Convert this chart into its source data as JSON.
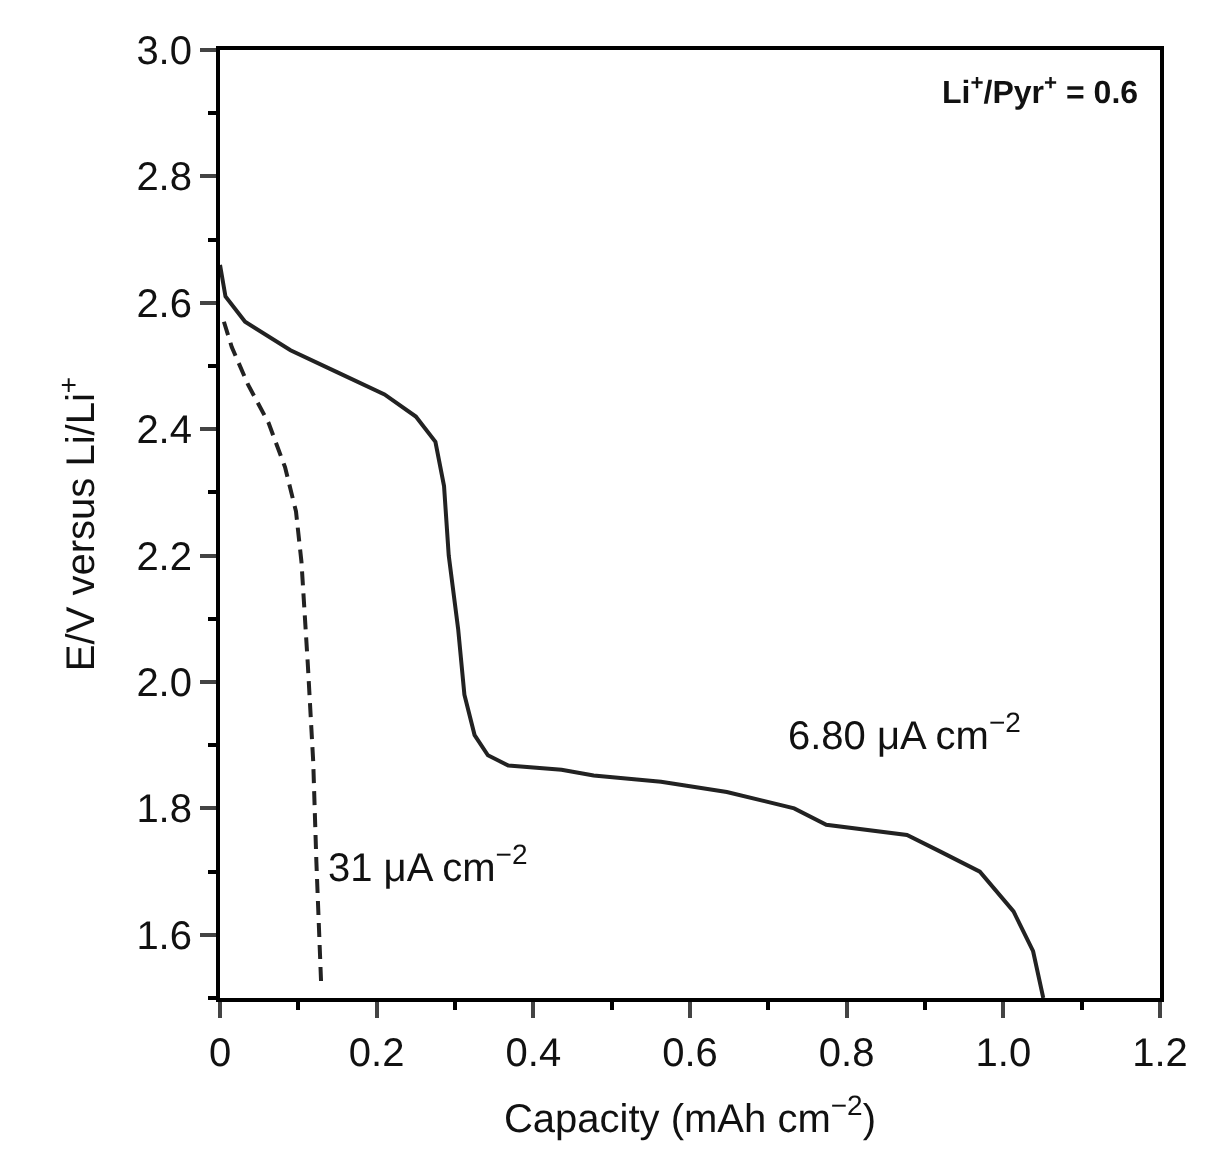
{
  "chart_data": {
    "type": "line",
    "xlabel": "Capacity (mAh cm$^{−2}$)",
    "ylabel": "E/V versus Li/Li$^{+}$",
    "xlim": [
      0,
      1.2
    ],
    "xticks": [
      0,
      0.2,
      0.4,
      0.6,
      0.8,
      {
        "value": 1,
        "label": "1.0"
      },
      1.2
    ],
    "ylim": [
      1.5,
      3.0
    ],
    "yticks": [
      1.6,
      1.8,
      {
        "value": 2,
        "label": "2.0"
      },
      2.2,
      2.4,
      2.6,
      2.8,
      {
        "value": 3,
        "label": "3.0"
      }
    ],
    "marker": "none",
    "series": [
      {
        "color": "#222222",
        "line_style": "solid",
        "x": [
          0.0,
          0.007,
          0.032,
          0.09,
          0.15,
          0.21,
          0.25,
          0.275,
          0.286,
          0.292,
          0.304,
          0.312,
          0.325,
          0.342,
          0.368,
          0.436,
          0.477,
          0.563,
          0.647,
          0.733,
          0.774,
          0.877,
          0.919,
          0.97,
          1.013,
          1.038,
          1.051
        ],
        "values": [
          2.66,
          2.61,
          2.57,
          2.525,
          2.49,
          2.455,
          2.42,
          2.38,
          2.31,
          2.2,
          2.084,
          1.98,
          1.916,
          1.884,
          1.868,
          1.861,
          1.852,
          1.842,
          1.826,
          1.8,
          1.774,
          1.758,
          1.732,
          1.7,
          1.637,
          1.574,
          1.5
        ]
      },
      {
        "color": "#222222",
        "line_style": "dashed",
        "x": [
          0.005,
          0.015,
          0.036,
          0.062,
          0.083,
          0.097,
          0.104,
          0.112,
          0.119,
          0.123,
          0.129
        ],
        "values": [
          2.57,
          2.53,
          2.47,
          2.41,
          2.34,
          2.27,
          2.19,
          2.03,
          1.874,
          1.716,
          1.526
        ]
      }
    ],
    "annotations": [
      "Li$^{+}$/Pyr$^{+}$ = 0.6",
      "6.80 μA cm$^{−2}$",
      "31 μA cm$^{−2}$"
    ]
  }
}
